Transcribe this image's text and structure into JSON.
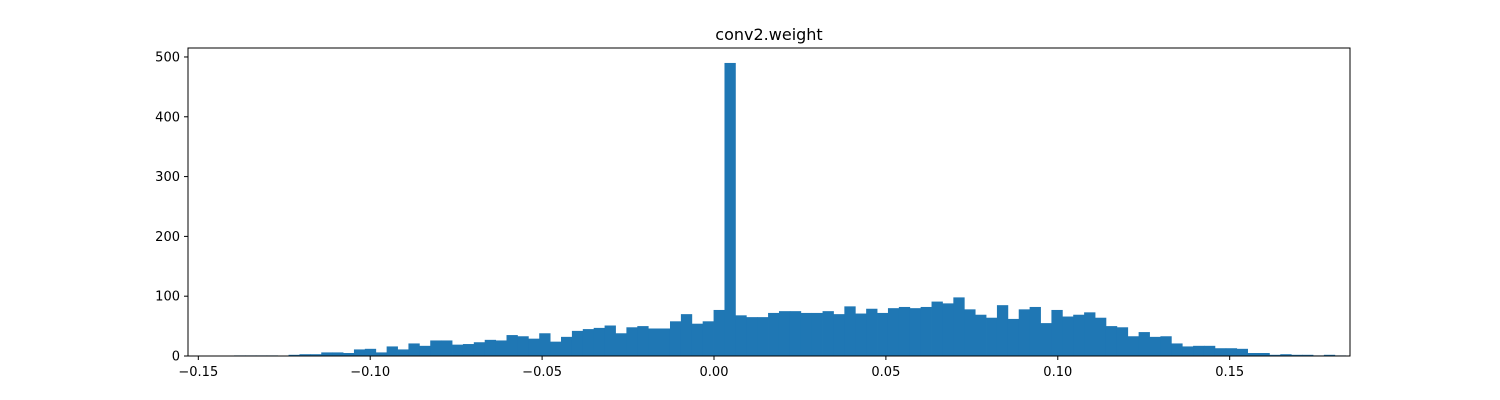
{
  "chart_data": {
    "type": "bar",
    "title": "conv2.weight",
    "xlabel": "",
    "ylabel": "",
    "bar_color": "#1f77b4",
    "bin_start": -0.1396,
    "bin_width": 0.00317,
    "xlim": [
      -0.153,
      0.185
    ],
    "ylim": [
      0,
      515
    ],
    "x_ticks": [
      {
        "value": -0.15,
        "label": "−0.15"
      },
      {
        "value": -0.1,
        "label": "−0.10"
      },
      {
        "value": -0.05,
        "label": "−0.05"
      },
      {
        "value": 0.0,
        "label": "0.00"
      },
      {
        "value": 0.05,
        "label": "0.05"
      },
      {
        "value": 0.1,
        "label": "0.10"
      },
      {
        "value": 0.15,
        "label": "0.15"
      }
    ],
    "y_ticks": [
      {
        "value": 0,
        "label": "0"
      },
      {
        "value": 100,
        "label": "100"
      },
      {
        "value": 200,
        "label": "200"
      },
      {
        "value": 300,
        "label": "300"
      },
      {
        "value": 400,
        "label": "400"
      },
      {
        "value": 500,
        "label": "500"
      }
    ],
    "values": [
      1,
      1,
      1,
      1,
      0,
      2,
      3,
      3,
      6,
      6,
      5,
      11,
      12,
      6,
      16,
      11,
      21,
      17,
      26,
      26,
      19,
      20,
      23,
      27,
      26,
      35,
      33,
      29,
      38,
      24,
      32,
      42,
      45,
      47,
      51,
      38,
      48,
      50,
      46,
      46,
      58,
      70,
      54,
      58,
      77,
      490,
      68,
      65,
      65,
      72,
      75,
      75,
      72,
      72,
      75,
      70,
      83,
      71,
      79,
      72,
      80,
      82,
      80,
      82,
      91,
      88,
      98,
      78,
      69,
      64,
      85,
      62,
      78,
      82,
      55,
      77,
      66,
      69,
      73,
      64,
      50,
      48,
      33,
      40,
      32,
      33,
      21,
      16,
      17,
      17,
      13,
      13,
      12,
      5,
      5,
      2,
      3,
      2,
      2,
      1,
      2,
      1
    ]
  }
}
